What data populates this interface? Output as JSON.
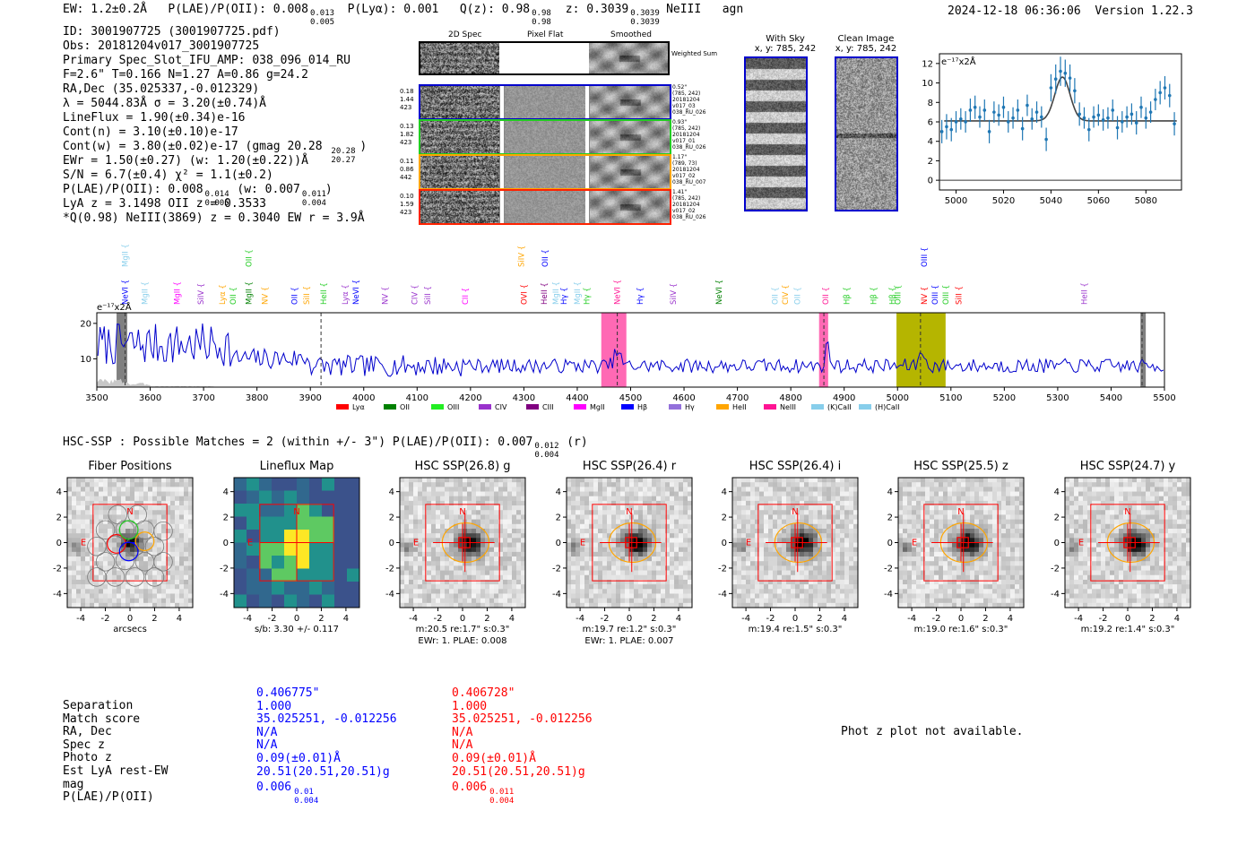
{
  "header": {
    "ew": "EW: 1.2±0.2Å",
    "plae_label": "P(LAE)/P(OII): 0.008",
    "plae_hi": "0.013",
    "plae_lo": "0.005",
    "plya": "P(Lyα): 0.001",
    "q_label": "Q(z): 0.98",
    "q_hi": "0.98",
    "q_lo": "0.98",
    "z_label": "z: 0.3039",
    "z_hi": "0.3039",
    "z_lo": "0.3039",
    "line": "NeIII",
    "cls": "agn",
    "timestamp": "2024-12-18 06:36:06",
    "version": "Version 1.22.3"
  },
  "info": {
    "lines": [
      "ID: 3001907725 (3001907725.pdf)",
      "Obs: 20181204v017_3001907725",
      "Primary Spec_Slot_IFU_AMP: 038_096_014_RU",
      "F=2.6\"  T=0.166  N=1.27  A=0.86  g=24.2",
      "RA,Dec (35.025337,-0.012329)",
      "λ = 5044.83Å  σ = 3.20(±0.74)Å",
      "LineFlux = 1.90(±0.34)e-16",
      "Cont(n) = 3.10(±0.10)e-17",
      "Cont(w) = 3.80(±0.02)e-17 (gmag 20.28",
      "EWr = 1.50(±0.27) (w: 1.20(±0.22))Å",
      "S/N = 6.7(±0.4)  χ² = 1.1(±0.2)",
      "P(LAE)/P(OII): 0.008",
      "LyA z = 3.1498  OII z = 0.3533",
      "*Q(0.98) NeIII(3869) z = 0.3040  EW r = 3.9Å"
    ],
    "gmag_hi": "20.28",
    "gmag_lo": "20.27",
    "plae_hi": "0.014",
    "plae_lo": "0.005",
    "plae_w": "(w: 0.007",
    "plae_w_hi": "0.011",
    "plae_w_lo": "0.004",
    "plae_w_close": ")"
  },
  "cutouts": {
    "col_headers": [
      "2D Spec",
      "Pixel Flat",
      "Smoothed"
    ],
    "weighted_sum": "Weighted Sum",
    "rows": [
      {
        "left": [
          "0.18",
          "1.44",
          "423"
        ],
        "right": [
          "0.52\"",
          "(785, 242)",
          "20181204",
          "v017_03",
          "038_RU_026"
        ],
        "color": "#0000cc"
      },
      {
        "left": [
          "0.13",
          "1.82",
          "423"
        ],
        "right": [
          "0.93\"",
          "(785, 242)",
          "20181204",
          "v017_01",
          "038_RU_026"
        ],
        "color": "#22cc22"
      },
      {
        "left": [
          "0.11",
          "0.86",
          "442"
        ],
        "right": [
          "1.17\"",
          "(789, 73)",
          "20181204",
          "v017_02",
          "038_RU_007"
        ],
        "color": "#ffa500"
      },
      {
        "left": [
          "0.10",
          "1.59",
          "423"
        ],
        "right": [
          "1.41\"",
          "(785, 242)",
          "20181204",
          "v017_02",
          "038_RU_026"
        ],
        "color": "#ff2200"
      }
    ]
  },
  "sky_panels": {
    "with_sky_title": "With Sky",
    "clean_title": "Clean Image",
    "coords": "x, y: 785, 242"
  },
  "colors": {
    "spectrum": "#0000cc",
    "fit_point": "#1f77b4",
    "hbox_pink": "#ff69b4",
    "hbox_olive": "#b5b500",
    "grey_band": "#808080"
  },
  "chart_data": [
    {
      "type": "scatter",
      "title": "",
      "units_label": "e⁻¹⁷x2Å",
      "xlim": [
        4993,
        5095
      ],
      "ylim": [
        -1,
        13
      ],
      "xticks": [
        5000,
        5020,
        5040,
        5060,
        5080
      ],
      "yticks": [
        0,
        2,
        4,
        6,
        8,
        10,
        12
      ],
      "x": [
        4994,
        4996,
        4998,
        5000,
        5002,
        5004,
        5006,
        5008,
        5010,
        5012,
        5014,
        5016,
        5018,
        5020,
        5022,
        5024,
        5026,
        5028,
        5030,
        5032,
        5034,
        5036,
        5038,
        5040,
        5042,
        5044,
        5046,
        5048,
        5050,
        5052,
        5054,
        5056,
        5058,
        5060,
        5062,
        5064,
        5066,
        5068,
        5070,
        5072,
        5074,
        5076,
        5078,
        5080,
        5082,
        5084,
        5086,
        5088,
        5090,
        5092
      ],
      "y": [
        5,
        5.5,
        5.2,
        6,
        6.3,
        6,
        7.2,
        7.5,
        6.5,
        7.2,
        5,
        7,
        6.7,
        7.5,
        6,
        6.4,
        7.2,
        5.3,
        7.7,
        6.3,
        7,
        6.5,
        4.2,
        9.5,
        10.4,
        11.2,
        11,
        10.5,
        9.2,
        6.8,
        6.4,
        5.2,
        6.5,
        6.7,
        6.2,
        6.4,
        7.2,
        5.4,
        6,
        6.5,
        6.8,
        5.9,
        7.5,
        6.4,
        7,
        8.3,
        9,
        9.5,
        8.7,
        5.8
      ],
      "err": [
        1.2,
        1.3,
        1.2,
        1.1,
        1.1,
        1.1,
        1.2,
        1.2,
        1.1,
        1.1,
        1.2,
        1.1,
        1.1,
        1.1,
        1.1,
        1.1,
        1.1,
        1.2,
        1.1,
        1.1,
        1.1,
        1.1,
        1.2,
        1.4,
        1.5,
        1.5,
        1.4,
        1.4,
        1.3,
        1.2,
        1.1,
        1.2,
        1.1,
        1.1,
        1.1,
        1.1,
        1.1,
        1.2,
        1.1,
        1.1,
        1.1,
        1.2,
        1.1,
        1.1,
        1.1,
        1.1,
        1.2,
        1.2,
        1.2,
        1.2
      ],
      "fit": {
        "continuum": 6.1,
        "peak": 10.6,
        "center": 5044.83,
        "sigma": 3.2
      }
    },
    {
      "type": "line",
      "units_label": "e⁻¹⁷x2Å",
      "xlim": [
        3500,
        5500
      ],
      "ylim": [
        2,
        23
      ],
      "xticks": [
        3500,
        3600,
        3700,
        3800,
        3900,
        4000,
        4100,
        4200,
        4300,
        4400,
        4500,
        4600,
        4700,
        4800,
        4900,
        5000,
        5100,
        5200,
        5300,
        5400,
        5500
      ],
      "yticks": [
        10,
        20
      ],
      "series": [
        {
          "name": "flux",
          "seed": 7,
          "base": 8,
          "noise_low": 6,
          "noise_high": 2
        }
      ],
      "features": [
        {
          "center": 4475,
          "amp": 4,
          "sigma": 6
        },
        {
          "center": 4869,
          "amp": 6,
          "sigma": 4
        },
        {
          "center": 5045,
          "amp": 5,
          "sigma": 4
        }
      ],
      "highlight_regions": [
        {
          "x0": 3537,
          "x1": 3557,
          "color": "grey"
        },
        {
          "x0": 4445,
          "x1": 4492,
          "color": "pink"
        },
        {
          "x0": 4853,
          "x1": 4870,
          "color": "pink"
        },
        {
          "x0": 4998,
          "x1": 5090,
          "color": "olive"
        },
        {
          "x0": 5455,
          "x1": 5465,
          "color": "grey"
        }
      ],
      "dashed_lines": [
        3553,
        3920,
        4475,
        4862,
        5043,
        5458
      ],
      "line_labels": [
        {
          "x": 3553,
          "name": "MgII",
          "color": "#87ceeb",
          "high": true
        },
        {
          "x": 3553,
          "name": "NeVI",
          "color": "#0000ff"
        },
        {
          "x": 3590,
          "name": "MgII",
          "color": "#87ceeb"
        },
        {
          "x": 3650,
          "name": "MgII",
          "color": "#ff00ff"
        },
        {
          "x": 3695,
          "name": "SiIV",
          "color": "#9932cc"
        },
        {
          "x": 3735,
          "name": "Lyα",
          "color": "#ffa500"
        },
        {
          "x": 3755,
          "name": "OII",
          "color": "#22cc22"
        },
        {
          "x": 3785,
          "name": "OII",
          "color": "#22cc22",
          "high": true
        },
        {
          "x": 3785,
          "name": "MgII",
          "color": "#008000"
        },
        {
          "x": 3815,
          "name": "NV",
          "color": "#ffa500"
        },
        {
          "x": 3870,
          "name": "OII",
          "color": "#0000ff"
        },
        {
          "x": 3893,
          "name": "SiII",
          "color": "#ffa500"
        },
        {
          "x": 3925,
          "name": "HeII",
          "color": "#22cc22"
        },
        {
          "x": 3965,
          "name": "Lyα",
          "color": "#9932cc"
        },
        {
          "x": 3985,
          "name": "NeVI",
          "color": "#0000ff"
        },
        {
          "x": 4040,
          "name": "NV",
          "color": "#9932cc"
        },
        {
          "x": 4095,
          "name": "CIV",
          "color": "#9932cc"
        },
        {
          "x": 4120,
          "name": "SiII",
          "color": "#9932cc"
        },
        {
          "x": 4190,
          "name": "CII",
          "color": "#ff00ff"
        },
        {
          "x": 4295,
          "name": "SiIV",
          "color": "#ffa500",
          "high": true
        },
        {
          "x": 4300,
          "name": "OVI",
          "color": "#ff0000"
        },
        {
          "x": 4340,
          "name": "OII",
          "color": "#0000ff",
          "high": true
        },
        {
          "x": 4338,
          "name": "HeII",
          "color": "#800080"
        },
        {
          "x": 4360,
          "name": "MgII",
          "color": "#87ceeb"
        },
        {
          "x": 4375,
          "name": "Hγ",
          "color": "#0000ff"
        },
        {
          "x": 4400,
          "name": "MgII",
          "color": "#87ceeb"
        },
        {
          "x": 4418,
          "name": "Hγ",
          "color": "#22cc22"
        },
        {
          "x": 4475,
          "name": "NeVI",
          "color": "#ff1493"
        },
        {
          "x": 4518,
          "name": "Hγ",
          "color": "#0000ff"
        },
        {
          "x": 4580,
          "name": "SiIV",
          "color": "#9932cc"
        },
        {
          "x": 4665,
          "name": "NeVI",
          "color": "#008000"
        },
        {
          "x": 4770,
          "name": "OII",
          "color": "#87ceeb"
        },
        {
          "x": 4790,
          "name": "CIV",
          "color": "#ffa500"
        },
        {
          "x": 4812,
          "name": "OII",
          "color": "#87ceeb"
        },
        {
          "x": 4865,
          "name": "OII",
          "color": "#ff1493"
        },
        {
          "x": 4905,
          "name": "Hβ",
          "color": "#22cc22"
        },
        {
          "x": 4955,
          "name": "Hβ",
          "color": "#22cc22"
        },
        {
          "x": 4990,
          "name": "Hβ",
          "color": "#22cc22"
        },
        {
          "x": 5000,
          "name": "OIII",
          "color": "#22cc22"
        },
        {
          "x": 5090,
          "name": "OIII",
          "color": "#22cc22"
        },
        {
          "x": 5050,
          "name": "OIII",
          "color": "#0000ff",
          "high": true
        },
        {
          "x": 5050,
          "name": "NV",
          "color": "#ff0000"
        },
        {
          "x": 5070,
          "name": "OIII",
          "color": "#0000ff"
        },
        {
          "x": 5115,
          "name": "SiII",
          "color": "#ff0000"
        },
        {
          "x": 5350,
          "name": "HeII",
          "color": "#9932cc"
        }
      ],
      "legend": [
        {
          "label": "Lyα",
          "color": "#ff0000"
        },
        {
          "label": "OII",
          "color": "#008000"
        },
        {
          "label": "OIII",
          "color": "#22ee22"
        },
        {
          "label": "CIV",
          "color": "#9932cc"
        },
        {
          "label": "CIII",
          "color": "#800080"
        },
        {
          "label": "MgII",
          "color": "#ff00ff"
        },
        {
          "label": "Hβ",
          "color": "#0000ff"
        },
        {
          "label": "Hγ",
          "color": "#9370db"
        },
        {
          "label": "HeII",
          "color": "#ffa500"
        },
        {
          "label": "NeIII",
          "color": "#ff1493"
        },
        {
          "label": "(K)CaII",
          "color": "#87ceeb"
        },
        {
          "label": "(H)CaII",
          "color": "#87ceeb"
        }
      ]
    }
  ],
  "hsc": {
    "title": "HSC-SSP : Possible Matches = 2 (within +/- 3\")  P(LAE)/P(OII): 0.007",
    "plae_hi": "0.012",
    "plae_lo": "0.004",
    "filter": "(r)",
    "panels": [
      {
        "title": "Fiber Positions",
        "caption1": "arcsecs",
        "caption2": "",
        "kind": "fiber"
      },
      {
        "title": "Lineflux Map",
        "caption1": "s/b: 3.30 +/- 0.117",
        "caption2": "",
        "kind": "flux"
      },
      {
        "title": "HSC SSP(26.8) g",
        "caption1": "m:20.5  re:1.7\"  s:0.3\"",
        "caption2": "EWr: 1. PLAE: 0.008",
        "kind": "gal"
      },
      {
        "title": "HSC SSP(26.4) r",
        "caption1": "m:19.7  re:1.2\"  s:0.3\"",
        "caption2": "EWr: 1. PLAE: 0.007",
        "kind": "gal"
      },
      {
        "title": "HSC SSP(26.4) i",
        "caption1": "m:19.4  re:1.5\"  s:0.3\"",
        "caption2": "",
        "kind": "gal"
      },
      {
        "title": "HSC SSP(25.5) z",
        "caption1": "m:19.0  re:1.6\"  s:0.3\"",
        "caption2": "",
        "kind": "gal"
      },
      {
        "title": "HSC SSP(24.7) y",
        "caption1": "m:19.2  re:1.4\"  s:0.3\"",
        "caption2": "",
        "kind": "gal"
      }
    ],
    "axis_ticks": [
      "-4",
      "-2",
      "0",
      "2",
      "4"
    ],
    "axis_tick_values": [
      -4,
      -2,
      0,
      2,
      4
    ],
    "compass_n": "N",
    "compass_e": "E"
  },
  "match_table": {
    "labels": [
      "Separation",
      "Match score",
      "RA, Dec",
      "Spec z",
      "Photo z",
      "Est LyA rest-EW",
      "mag",
      "P(LAE)/P(OII)"
    ],
    "col_blue": [
      "0.406775\"",
      "1.000",
      "35.025251, -0.012256",
      "N/A",
      "N/A",
      "0.09(±0.01)Å",
      "20.51(20.51,20.51)g",
      "0.006"
    ],
    "col_blue_plae_hi": "0.01",
    "col_blue_plae_lo": "0.004",
    "col_red": [
      "0.406728\"",
      "1.000",
      "35.025251, -0.012256",
      "N/A",
      "N/A",
      "0.09(±0.01)Å",
      "20.51(20.51,20.51)g",
      "0.006"
    ],
    "col_red_plae_hi": "0.011",
    "col_red_plae_lo": "0.004",
    "phot_z_note": "Phot z plot not available."
  }
}
